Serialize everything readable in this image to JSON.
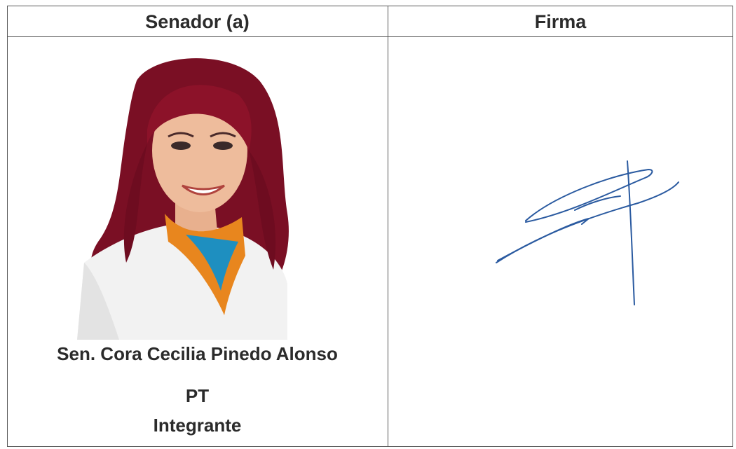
{
  "table": {
    "headers": [
      "Senador (a)",
      "Firma"
    ],
    "senator": {
      "name": "Sen. Cora Cecilia Pinedo Alonso",
      "party": "PT",
      "role": "Integrante"
    }
  }
}
